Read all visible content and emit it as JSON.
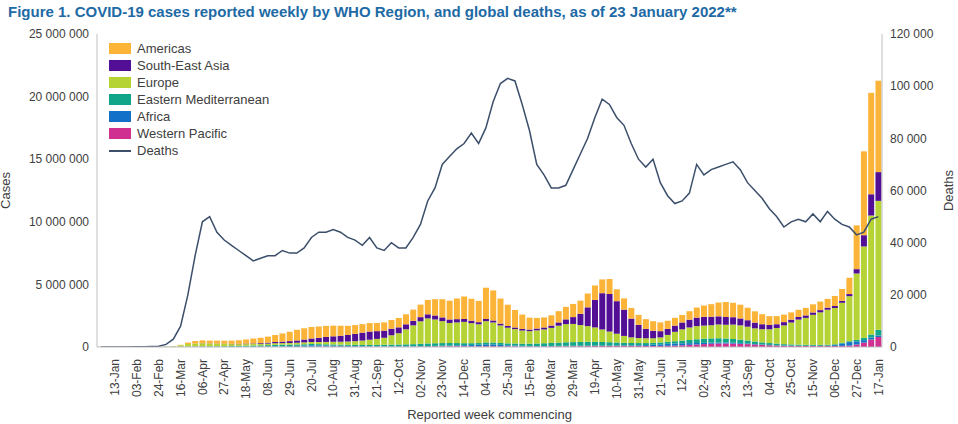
{
  "chart_data": {
    "type": "bar",
    "title": "Figure 1. COVID-19 cases reported weekly by WHO Region, and global deaths, as of 23 January 2022**",
    "x_label": "Reported week commencing",
    "y_label": "Cases",
    "y2_label": "Deaths",
    "stacked": true,
    "grid": false,
    "legend": "top-left",
    "categories": [
      null,
      null,
      "13-Jan",
      null,
      null,
      "03-Feb",
      null,
      null,
      "24-Feb",
      null,
      null,
      "16-Mar",
      null,
      null,
      "06-Apr",
      null,
      null,
      "27-Apr",
      null,
      null,
      "18-May",
      null,
      null,
      "08-Jun",
      null,
      null,
      "29-Jun",
      null,
      null,
      "20-Jul",
      null,
      null,
      "10-Aug",
      null,
      null,
      "31-Aug",
      null,
      null,
      "21-Sep",
      null,
      null,
      "12-Oct",
      null,
      null,
      "02-Nov",
      null,
      null,
      "23-Nov",
      null,
      null,
      "14-Dec",
      null,
      null,
      "04-Jan",
      null,
      null,
      "25-Jan",
      null,
      null,
      "15-Feb",
      null,
      null,
      "08-Mar",
      null,
      null,
      "29-Mar",
      null,
      null,
      "19-Apr",
      null,
      null,
      "10-May",
      null,
      null,
      "31-May",
      null,
      null,
      "21-Jun",
      null,
      null,
      "12-Jul",
      null,
      null,
      "02-Aug",
      null,
      null,
      "23-Aug",
      null,
      null,
      "13-Sep",
      null,
      null,
      "04-Oct",
      null,
      null,
      "25-Oct",
      null,
      null,
      "15-Nov",
      null,
      null,
      "06-Dec",
      null,
      null,
      "27-Dec",
      null,
      null,
      "17-Jan"
    ],
    "ylim": [
      0,
      25000000
    ],
    "yticks": [
      0,
      {
        "value": 5000000,
        "label": "5 000 000"
      },
      {
        "value": 10000000,
        "label": "10 000 000"
      },
      {
        "value": 15000000,
        "label": "15 000 000"
      },
      {
        "value": 20000000,
        "label": "20 000 000"
      },
      {
        "value": 25000000,
        "label": "25 000 000"
      }
    ],
    "y2lim": [
      0,
      120000
    ],
    "y2ticks": [
      0,
      {
        "value": 20000,
        "label": "20 000"
      },
      {
        "value": 40000,
        "label": "40 000"
      },
      {
        "value": 60000,
        "label": "60 000"
      },
      {
        "value": 80000,
        "label": "80 000"
      },
      {
        "value": 100000,
        "label": "100 000"
      },
      {
        "value": 120000,
        "label": "120 000"
      }
    ],
    "series": [
      {
        "name": "Americas",
        "color": "#fbb437",
        "values": [
          0,
          0,
          0,
          0,
          0,
          0,
          0,
          0,
          0,
          0,
          5000,
          30000,
          110000,
          200000,
          230000,
          220000,
          230000,
          240000,
          260000,
          280000,
          330000,
          400000,
          430000,
          480000,
          560000,
          650000,
          750000,
          850000,
          900000,
          920000,
          900000,
          880000,
          850000,
          800000,
          730000,
          700000,
          680000,
          680000,
          650000,
          660000,
          700000,
          750000,
          800000,
          900000,
          1000000,
          1150000,
          1300000,
          1450000,
          1500000,
          1650000,
          1800000,
          1750000,
          1700000,
          2500000,
          2400000,
          2000000,
          1700000,
          1400000,
          1150000,
          950000,
          850000,
          800000,
          820000,
          900000,
          1000000,
          1050000,
          1050000,
          1100000,
          1150000,
          1100000,
          1200000,
          950000,
          900000,
          850000,
          800000,
          780000,
          760000,
          700000,
          650000,
          620000,
          600000,
          680000,
          800000,
          900000,
          1000000,
          1100000,
          1200000,
          1150000,
          1100000,
          1000000,
          900000,
          800000,
          700000,
          650000,
          600000,
          580000,
          570000,
          600000,
          650000,
          680000,
          700000,
          800000,
          950000,
          1300000,
          3500000,
          6700000,
          8100000,
          7300000
        ]
      },
      {
        "name": "South-East Asia",
        "color": "#520f96",
        "values": [
          0,
          0,
          0,
          0,
          0,
          0,
          0,
          0,
          0,
          0,
          0,
          0,
          2000,
          5000,
          10000,
          12000,
          15000,
          20000,
          25000,
          30000,
          40000,
          50000,
          65000,
          80000,
          100000,
          120000,
          150000,
          180000,
          230000,
          280000,
          340000,
          400000,
          440000,
          480000,
          520000,
          580000,
          630000,
          650000,
          620000,
          570000,
          520000,
          470000,
          400000,
          360000,
          330000,
          330000,
          320000,
          300000,
          280000,
          260000,
          230000,
          200000,
          170000,
          170000,
          160000,
          150000,
          140000,
          130000,
          125000,
          130000,
          145000,
          160000,
          190000,
          260000,
          380000,
          550000,
          900000,
          1500000,
          2200000,
          2900000,
          3000000,
          2600000,
          2100000,
          1500000,
          1050000,
          750000,
          600000,
          500000,
          480000,
          500000,
          550000,
          620000,
          680000,
          700000,
          680000,
          650000,
          620000,
          590000,
          550000,
          520000,
          460000,
          400000,
          350000,
          300000,
          260000,
          230000,
          210000,
          200000,
          190000,
          180000,
          170000,
          160000,
          155000,
          170000,
          350000,
          900000,
          1700000,
          2300000
        ]
      },
      {
        "name": "Europe",
        "color": "#b5d334",
        "values": [
          0,
          0,
          0,
          0,
          0,
          0,
          0,
          0,
          3000,
          15000,
          50000,
          120000,
          200000,
          230000,
          240000,
          220000,
          200000,
          180000,
          150000,
          140000,
          130000,
          120000,
          110000,
          120000,
          130000,
          130000,
          130000,
          140000,
          150000,
          160000,
          170000,
          190000,
          210000,
          230000,
          260000,
          300000,
          350000,
          420000,
          480000,
          560000,
          750000,
          900000,
          1200000,
          1500000,
          1800000,
          2000000,
          1900000,
          1750000,
          1600000,
          1650000,
          1700000,
          1600000,
          1500000,
          1700000,
          1600000,
          1400000,
          1250000,
          1150000,
          1050000,
          1000000,
          1050000,
          1100000,
          1200000,
          1350000,
          1450000,
          1450000,
          1350000,
          1250000,
          1150000,
          1000000,
          850000,
          700000,
          550000,
          450000,
          400000,
          380000,
          370000,
          400000,
          550000,
          750000,
          900000,
          1000000,
          1050000,
          1050000,
          1050000,
          1100000,
          1100000,
          1150000,
          1150000,
          1100000,
          1050000,
          1050000,
          1100000,
          1250000,
          1500000,
          1750000,
          2000000,
          2150000,
          2400000,
          2600000,
          2800000,
          2900000,
          3200000,
          3600000,
          5300000,
          7300000,
          9500000,
          10300000
        ]
      },
      {
        "name": "Eastern Mediterranean",
        "color": "#11a589",
        "values": [
          0,
          0,
          0,
          0,
          0,
          0,
          0,
          0,
          2000,
          8000,
          10000,
          15000,
          25000,
          30000,
          35000,
          40000,
          45000,
          50000,
          60000,
          70000,
          80000,
          90000,
          100000,
          110000,
          120000,
          120000,
          115000,
          110000,
          105000,
          100000,
          95000,
          90000,
          90000,
          88000,
          90000,
          92000,
          95000,
          100000,
          110000,
          120000,
          130000,
          140000,
          150000,
          160000,
          180000,
          200000,
          210000,
          210000,
          200000,
          180000,
          160000,
          150000,
          140000,
          150000,
          150000,
          150000,
          150000,
          160000,
          170000,
          180000,
          200000,
          220000,
          240000,
          260000,
          280000,
          290000,
          300000,
          310000,
          300000,
          280000,
          260000,
          230000,
          200000,
          180000,
          170000,
          160000,
          150000,
          150000,
          160000,
          180000,
          210000,
          250000,
          300000,
          330000,
          340000,
          340000,
          320000,
          300000,
          270000,
          240000,
          200000,
          170000,
          150000,
          130000,
          110000,
          100000,
          90000,
          80000,
          75000,
          70000,
          65000,
          60000,
          60000,
          70000,
          120000,
          180000,
          250000,
          450000
        ]
      },
      {
        "name": "Africa",
        "color": "#1372c8",
        "values": [
          0,
          0,
          0,
          0,
          0,
          0,
          0,
          0,
          0,
          0,
          0,
          0,
          1000,
          3000,
          5000,
          6000,
          7000,
          8000,
          10000,
          12000,
          15000,
          20000,
          25000,
          30000,
          40000,
          50000,
          60000,
          75000,
          90000,
          110000,
          100000,
          90000,
          80000,
          70000,
          60000,
          50000,
          45000,
          40000,
          35000,
          35000,
          35000,
          35000,
          35000,
          38000,
          40000,
          42000,
          45000,
          50000,
          60000,
          70000,
          85000,
          100000,
          120000,
          150000,
          140000,
          110000,
          85000,
          70000,
          55000,
          45000,
          40000,
          40000,
          40000,
          42000,
          42000,
          40000,
          38000,
          38000,
          38000,
          38000,
          38000,
          40000,
          40000,
          45000,
          55000,
          70000,
          100000,
          130000,
          160000,
          170000,
          160000,
          140000,
          120000,
          100000,
          90000,
          80000,
          75000,
          70000,
          60000,
          50000,
          40000,
          30000,
          25000,
          20000,
          18000,
          15000,
          14000,
          14000,
          15000,
          18000,
          30000,
          70000,
          180000,
          280000,
          250000,
          200000,
          150000,
          120000
        ]
      },
      {
        "name": "Western Pacific",
        "color": "#d0308f",
        "values": [
          0,
          0,
          0,
          5000,
          15000,
          20000,
          20000,
          15000,
          10000,
          12000,
          10000,
          8000,
          10000,
          12000,
          12000,
          12000,
          10000,
          8000,
          8000,
          7000,
          7000,
          8000,
          8000,
          9000,
          10000,
          12000,
          14000,
          18000,
          22000,
          28000,
          32000,
          35000,
          35000,
          32000,
          30000,
          28000,
          25000,
          22000,
          22000,
          22000,
          22000,
          25000,
          27000,
          30000,
          35000,
          40000,
          45000,
          55000,
          60000,
          65000,
          60000,
          55000,
          55000,
          65000,
          70000,
          60000,
          55000,
          50000,
          40000,
          40000,
          40000,
          42000,
          45000,
          50000,
          55000,
          60000,
          65000,
          70000,
          75000,
          80000,
          85000,
          90000,
          95000,
          95000,
          90000,
          85000,
          80000,
          85000,
          95000,
          110000,
          140000,
          170000,
          200000,
          230000,
          260000,
          280000,
          280000,
          270000,
          250000,
          230000,
          200000,
          170000,
          140000,
          120000,
          100000,
          90000,
          85000,
          80000,
          80000,
          80000,
          80000,
          85000,
          90000,
          110000,
          200000,
          350000,
          600000,
          800000
        ]
      },
      {
        "name": "Deaths",
        "color": "#3b4f6b",
        "type": "line",
        "axis": "y2",
        "values": [
          0,
          0,
          0,
          0,
          0,
          100,
          100,
          200,
          300,
          1000,
          3000,
          8000,
          20000,
          35000,
          48000,
          50000,
          44000,
          41000,
          39000,
          37000,
          35000,
          33000,
          34000,
          35000,
          35000,
          37000,
          36000,
          36000,
          38000,
          42000,
          44000,
          44000,
          45000,
          44000,
          42000,
          41000,
          39000,
          42000,
          38000,
          37000,
          40000,
          38000,
          38000,
          42000,
          47000,
          56000,
          61000,
          70000,
          73000,
          76000,
          78000,
          82000,
          78000,
          84000,
          94000,
          101000,
          103000,
          102000,
          93000,
          83000,
          70000,
          66000,
          61000,
          61000,
          62000,
          68000,
          74000,
          80000,
          88000,
          95000,
          93000,
          88000,
          85000,
          78000,
          72000,
          69000,
          72000,
          63000,
          58000,
          55000,
          56000,
          59000,
          70000,
          66000,
          68000,
          69000,
          70000,
          71000,
          68000,
          63000,
          60000,
          57000,
          53000,
          50000,
          46000,
          48000,
          49000,
          48000,
          51000,
          48000,
          52000,
          49000,
          47000,
          46000,
          43000,
          44000,
          49000,
          50000
        ]
      }
    ]
  }
}
